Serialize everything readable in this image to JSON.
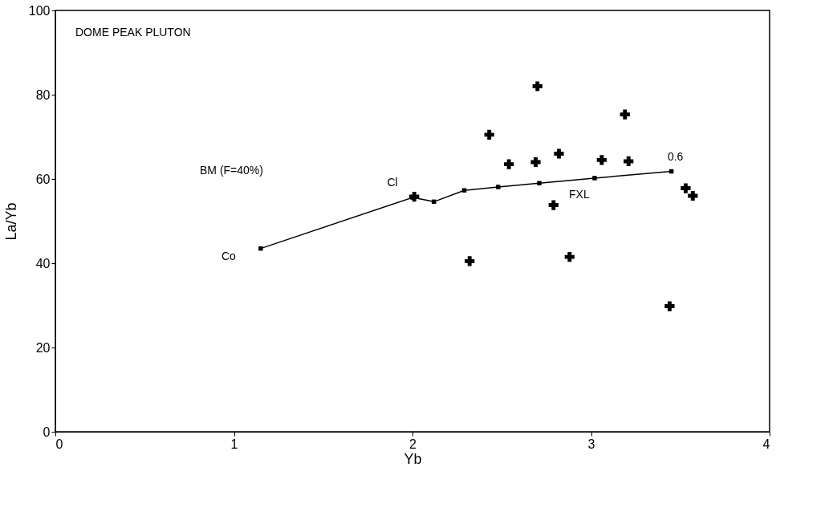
{
  "chart_data": {
    "type": "scatter",
    "xlabel": "Yb",
    "ylabel": "La/Yb",
    "xlim": [
      0,
      4
    ],
    "ylim": [
      0,
      100
    ],
    "xticks": [
      0,
      1,
      2,
      3,
      4
    ],
    "yticks": [
      0,
      20,
      40,
      60,
      80,
      100
    ],
    "grid": false,
    "series": [
      {
        "type": "line",
        "marker": "square",
        "color": "#000000",
        "x": [
          1.15,
          2.0,
          2.12,
          2.29,
          2.48,
          2.71,
          3.02,
          3.45
        ],
        "values": [
          43.5,
          55.6,
          54.6,
          57.3,
          58.1,
          59.0,
          60.2,
          61.8
        ]
      },
      {
        "marker": "cross",
        "color": "#000000",
        "x": [
          2.01,
          2.7,
          2.43,
          2.54,
          2.69,
          2.82,
          2.79,
          2.32,
          2.88,
          3.06,
          3.21,
          3.19,
          3.53,
          3.57,
          3.44
        ],
        "values": [
          55.8,
          82,
          70.5,
          63.5,
          64,
          66,
          53.8,
          40.5,
          41.5,
          64.5,
          64.2,
          75.3,
          57.8,
          56,
          29.8
        ]
      }
    ],
    "annotations": [
      "DOME PEAK PLUTON",
      "BM (F=40%)",
      {
        "text": "Co",
        "x": 1.15,
        "y": 43.5
      },
      {
        "text": "Cl",
        "x": 2.0,
        "y": 55.6
      },
      "FXL",
      {
        "text": "0.6",
        "x": 3.45,
        "y": 61.8
      }
    ]
  }
}
